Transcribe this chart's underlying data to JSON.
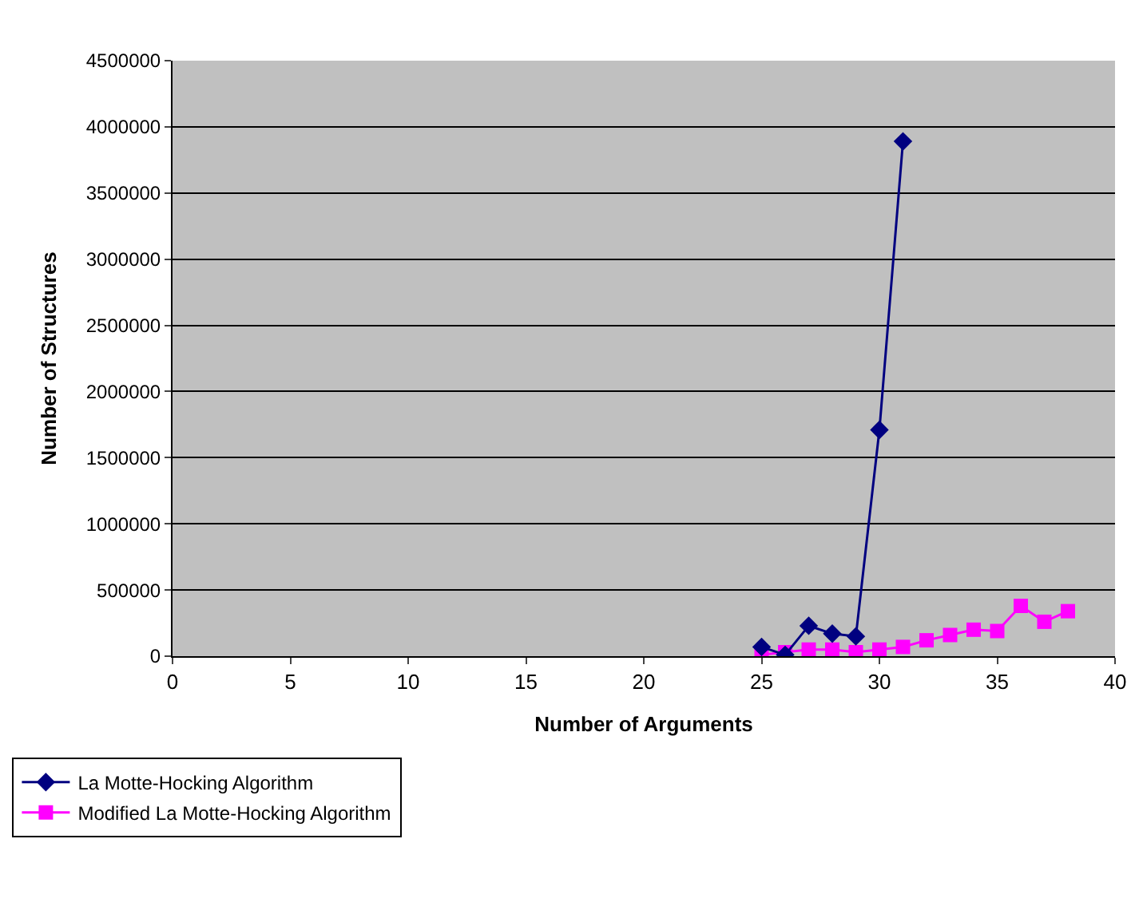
{
  "chart_data": {
    "type": "line",
    "xlabel": "Number of Arguments",
    "ylabel": "Number of Structures",
    "xlim": [
      0,
      40
    ],
    "xticks": [
      0,
      5,
      10,
      15,
      20,
      25,
      30,
      35,
      40
    ],
    "ylim": [
      0,
      4500000
    ],
    "yticks": [
      0,
      500000,
      1000000,
      1500000,
      2000000,
      2500000,
      3000000,
      3500000,
      4000000,
      4500000
    ],
    "grid": "y",
    "legend": "bottom left",
    "series": [
      {
        "name": "La Motte-Hocking Algorithm",
        "color": "#000080",
        "marker": "diamond",
        "x": [
          25,
          26,
          27,
          28,
          29,
          30,
          31
        ],
        "values": [
          70000,
          10000,
          230000,
          170000,
          150000,
          1710000,
          3890000
        ]
      },
      {
        "name": "Modified La Motte-Hocking Algorithm",
        "color": "#ff00ff",
        "marker": "square",
        "x": [
          25,
          26,
          27,
          28,
          29,
          30,
          31,
          32,
          33,
          34,
          35,
          36,
          37,
          38
        ],
        "values": [
          10000,
          30000,
          50000,
          50000,
          30000,
          50000,
          70000,
          120000,
          160000,
          200000,
          190000,
          380000,
          260000,
          340000
        ]
      }
    ]
  }
}
